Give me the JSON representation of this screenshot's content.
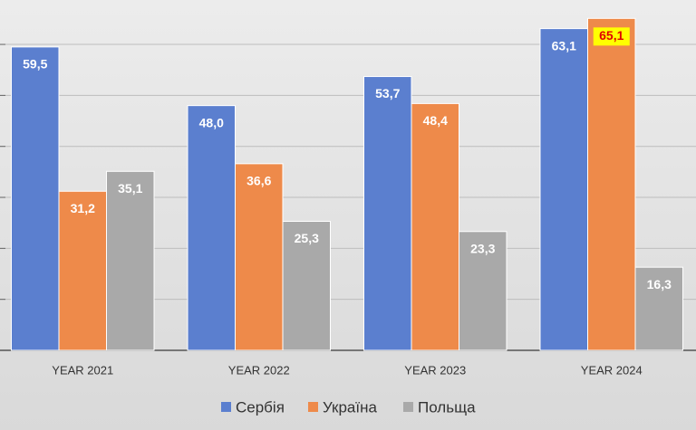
{
  "chart_data": {
    "type": "bar",
    "categories": [
      "YEAR 2021",
      "YEAR 2022",
      "YEAR 2023",
      "YEAR 2024"
    ],
    "series": [
      {
        "name": "Сербія",
        "color": "#5b7fcf",
        "values": [
          59.5,
          48.0,
          53.7,
          63.1
        ],
        "value_labels": [
          "59,5",
          "48,0",
          "53,7",
          "63,1"
        ]
      },
      {
        "name": "Україна",
        "color": "#ee8a4a",
        "values": [
          31.2,
          36.6,
          48.4,
          65.1
        ],
        "value_labels": [
          "31,2",
          "36,6",
          "48,4",
          "65,1"
        ]
      },
      {
        "name": "Польща",
        "color": "#a9a9a9",
        "values": [
          35.1,
          25.3,
          23.3,
          16.3
        ],
        "value_labels": [
          "35,1",
          "25,3",
          "23,3",
          "16,3"
        ]
      }
    ],
    "ylim": [
      0,
      68
    ],
    "yticks": [
      0,
      10,
      20,
      30,
      40,
      50,
      60
    ],
    "grid": true,
    "legend": "bottom",
    "highlight": {
      "series": 1,
      "index": 3,
      "color": "#ffff00",
      "text_color": "#e00000"
    }
  }
}
